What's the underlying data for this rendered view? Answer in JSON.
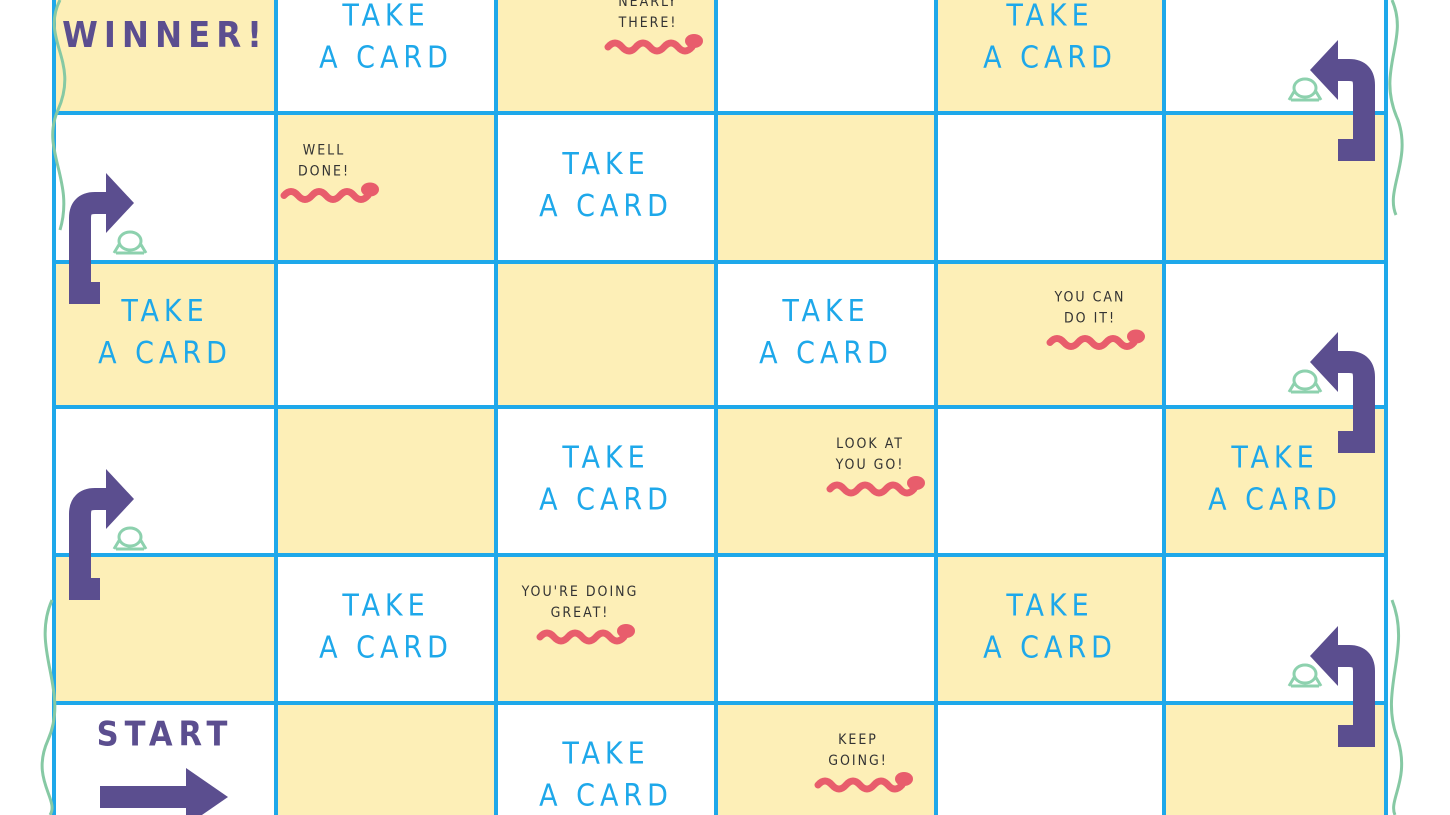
{
  "board": {
    "rows": [
      [
        {
          "kind": "goal",
          "lines": [
            "WINNER!"
          ]
        },
        {
          "kind": "card",
          "lines": [
            "TAKE",
            "A CARD"
          ]
        },
        {
          "kind": "message",
          "lines": [
            "NEARLY",
            "THERE!"
          ]
        },
        null,
        {
          "kind": "card",
          "lines": [
            "TAKE",
            "A CARD"
          ]
        },
        null
      ],
      [
        null,
        {
          "kind": "message",
          "lines": [
            "WELL",
            "DONE!"
          ]
        },
        {
          "kind": "card",
          "lines": [
            "TAKE",
            "A CARD"
          ]
        },
        null,
        null,
        null
      ],
      [
        {
          "kind": "card",
          "lines": [
            "TAKE",
            "A CARD"
          ]
        },
        null,
        null,
        {
          "kind": "card",
          "lines": [
            "TAKE",
            "A CARD"
          ]
        },
        {
          "kind": "message",
          "lines": [
            "YOU CAN",
            "DO IT!"
          ]
        },
        null
      ],
      [
        null,
        null,
        {
          "kind": "card",
          "lines": [
            "TAKE",
            "A CARD"
          ]
        },
        {
          "kind": "message",
          "lines": [
            "LOOK AT",
            "YOU GO!"
          ]
        },
        null,
        {
          "kind": "card",
          "lines": [
            "TAKE",
            "A CARD"
          ]
        }
      ],
      [
        null,
        {
          "kind": "card",
          "lines": [
            "TAKE",
            "A CARD"
          ]
        },
        {
          "kind": "message",
          "lines": [
            "YOU'RE DOING",
            "GREAT!"
          ]
        },
        null,
        {
          "kind": "card",
          "lines": [
            "TAKE",
            "A CARD"
          ]
        },
        null
      ],
      [
        {
          "kind": "start",
          "lines": [
            "START"
          ]
        },
        null,
        {
          "kind": "card",
          "lines": [
            "TAKE",
            "A CARD"
          ]
        },
        {
          "kind": "message",
          "lines": [
            "KEEP",
            "GOING!"
          ]
        },
        null,
        null
      ]
    ]
  }
}
